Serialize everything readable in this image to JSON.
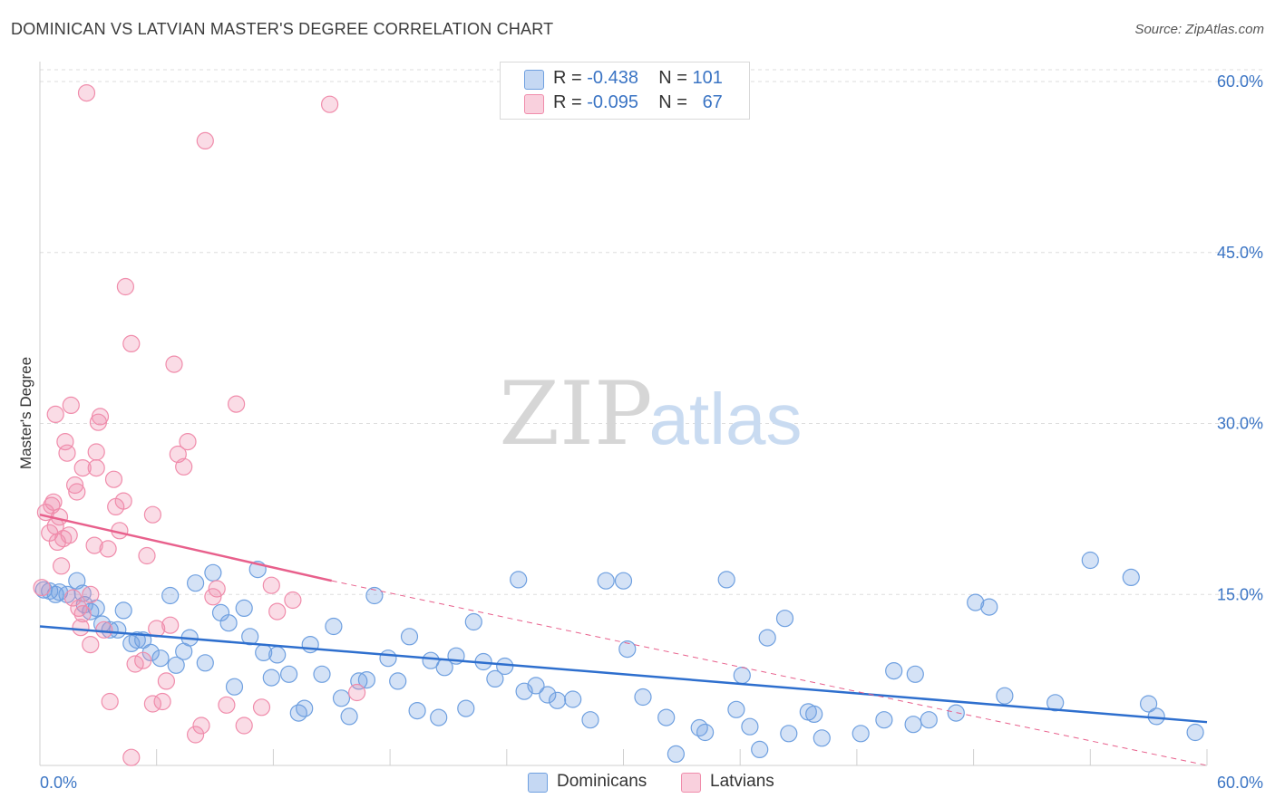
{
  "header": {
    "title": "DOMINICAN VS LATVIAN MASTER'S DEGREE CORRELATION CHART",
    "source": "Source: ZipAtlas.com"
  },
  "watermark": {
    "zip": "ZIP",
    "atlas": "atlas"
  },
  "legend": {
    "rows": [
      {
        "r_label": "R =",
        "r_value": "-0.438",
        "n_label": "N =",
        "n_value": "101",
        "color": "#6fa0e0"
      },
      {
        "r_label": "R =",
        "r_value": "-0.095",
        "n_label": "N =",
        "n_value": "67",
        "color": "#f08cab"
      }
    ]
  },
  "bottom_legend": [
    {
      "label": "Dominicans",
      "color": "#6fa0e0"
    },
    {
      "label": "Latvians",
      "color": "#f08cab"
    }
  ],
  "chart_data": {
    "type": "scatter",
    "title": "DOMINICAN VS LATVIAN MASTER'S DEGREE CORRELATION CHART",
    "xlabel": "",
    "ylabel": "Master's Degree",
    "xlim": [
      0,
      60
    ],
    "ylim": [
      0,
      60
    ],
    "x_tick_labels": [
      {
        "value": 0,
        "label": "0.0%"
      },
      {
        "value": 60,
        "label": "60.0%"
      }
    ],
    "y_tick_labels": [
      {
        "value": 15,
        "label": "15.0%"
      },
      {
        "value": 30,
        "label": "30.0%"
      },
      {
        "value": 45,
        "label": "45.0%"
      },
      {
        "value": 60,
        "label": "60.0%"
      }
    ],
    "colors": {
      "dominicans": "#6fa0e0",
      "latvians": "#f08cab",
      "dominicans_line": "#2e6fce",
      "latvians_line": "#e8608c"
    },
    "series": [
      {
        "name": "Dominicans",
        "trend": {
          "x0": 0,
          "y0": 12.2,
          "x1": 60,
          "y1": 3.8
        },
        "points": [
          [
            0.5,
            15.3
          ],
          [
            0.8,
            15.0
          ],
          [
            1.0,
            15.2
          ],
          [
            1.4,
            15.0
          ],
          [
            1.9,
            16.2
          ],
          [
            2.3,
            14.1
          ],
          [
            2.6,
            13.5
          ],
          [
            2.9,
            13.8
          ],
          [
            3.2,
            12.4
          ],
          [
            3.6,
            11.9
          ],
          [
            4.0,
            11.9
          ],
          [
            4.3,
            13.6
          ],
          [
            4.7,
            10.7
          ],
          [
            5.0,
            11.0
          ],
          [
            5.3,
            11.0
          ],
          [
            5.7,
            9.9
          ],
          [
            6.2,
            9.4
          ],
          [
            6.7,
            14.9
          ],
          [
            7.0,
            8.8
          ],
          [
            7.4,
            10.0
          ],
          [
            7.7,
            11.2
          ],
          [
            8.0,
            16.0
          ],
          [
            8.5,
            9.0
          ],
          [
            8.9,
            16.9
          ],
          [
            9.3,
            13.4
          ],
          [
            9.7,
            12.5
          ],
          [
            10.0,
            6.9
          ],
          [
            10.5,
            13.8
          ],
          [
            10.8,
            11.3
          ],
          [
            11.2,
            17.2
          ],
          [
            11.5,
            9.9
          ],
          [
            11.9,
            7.7
          ],
          [
            12.2,
            9.7
          ],
          [
            12.8,
            8.0
          ],
          [
            13.3,
            4.6
          ],
          [
            13.6,
            5.0
          ],
          [
            13.9,
            10.6
          ],
          [
            14.5,
            8.0
          ],
          [
            15.1,
            12.2
          ],
          [
            15.5,
            5.9
          ],
          [
            15.9,
            4.3
          ],
          [
            16.4,
            7.4
          ],
          [
            16.8,
            7.5
          ],
          [
            17.2,
            14.9
          ],
          [
            17.9,
            9.4
          ],
          [
            18.4,
            7.4
          ],
          [
            19.0,
            11.3
          ],
          [
            19.4,
            4.8
          ],
          [
            20.1,
            9.2
          ],
          [
            20.5,
            4.2
          ],
          [
            20.8,
            8.6
          ],
          [
            21.4,
            9.6
          ],
          [
            21.9,
            5.0
          ],
          [
            22.3,
            12.6
          ],
          [
            22.8,
            9.1
          ],
          [
            23.4,
            7.6
          ],
          [
            23.9,
            8.7
          ],
          [
            24.6,
            16.3
          ],
          [
            24.9,
            6.5
          ],
          [
            25.5,
            7.0
          ],
          [
            26.1,
            6.2
          ],
          [
            26.6,
            5.7
          ],
          [
            27.4,
            5.8
          ],
          [
            28.3,
            4.0
          ],
          [
            29.1,
            16.2
          ],
          [
            30.0,
            16.2
          ],
          [
            30.2,
            10.2
          ],
          [
            31.0,
            6.0
          ],
          [
            32.2,
            4.2
          ],
          [
            32.7,
            1.0
          ],
          [
            33.9,
            3.3
          ],
          [
            34.2,
            2.9
          ],
          [
            35.3,
            16.3
          ],
          [
            35.8,
            4.9
          ],
          [
            36.1,
            7.9
          ],
          [
            36.5,
            3.4
          ],
          [
            37.0,
            1.4
          ],
          [
            37.4,
            11.2
          ],
          [
            38.3,
            12.9
          ],
          [
            38.5,
            2.8
          ],
          [
            39.5,
            4.7
          ],
          [
            39.8,
            4.5
          ],
          [
            40.2,
            2.4
          ],
          [
            42.2,
            2.8
          ],
          [
            43.4,
            4.0
          ],
          [
            43.9,
            8.3
          ],
          [
            44.9,
            3.6
          ],
          [
            45.0,
            8.0
          ],
          [
            45.7,
            4.0
          ],
          [
            47.1,
            4.6
          ],
          [
            48.1,
            14.3
          ],
          [
            48.8,
            13.9
          ],
          [
            49.6,
            6.1
          ],
          [
            52.2,
            5.5
          ],
          [
            54.0,
            18.0
          ],
          [
            56.1,
            16.5
          ],
          [
            57.0,
            5.4
          ],
          [
            57.4,
            4.3
          ],
          [
            59.4,
            2.9
          ],
          [
            2.2,
            15.1
          ],
          [
            0.2,
            15.4
          ]
        ]
      },
      {
        "name": "Latvians",
        "trend": {
          "x0": 0,
          "y0": 22.0,
          "x1": 15.0,
          "y1": 16.2
        },
        "trend_extension": {
          "x0": 15.0,
          "y0": 16.2,
          "x1": 60,
          "y1": 0
        },
        "points": [
          [
            0.1,
            15.6
          ],
          [
            0.3,
            22.2
          ],
          [
            0.5,
            20.4
          ],
          [
            0.6,
            22.8
          ],
          [
            0.7,
            23.1
          ],
          [
            0.8,
            21.0
          ],
          [
            0.8,
            30.8
          ],
          [
            0.9,
            19.6
          ],
          [
            1.0,
            21.8
          ],
          [
            1.1,
            17.5
          ],
          [
            1.2,
            19.9
          ],
          [
            1.3,
            28.4
          ],
          [
            1.4,
            27.4
          ],
          [
            1.5,
            20.2
          ],
          [
            1.6,
            31.6
          ],
          [
            1.7,
            14.7
          ],
          [
            1.8,
            24.6
          ],
          [
            1.9,
            24.0
          ],
          [
            2.0,
            13.8
          ],
          [
            2.1,
            12.1
          ],
          [
            2.2,
            13.3
          ],
          [
            2.2,
            26.1
          ],
          [
            2.4,
            59.0
          ],
          [
            2.6,
            10.6
          ],
          [
            2.8,
            19.3
          ],
          [
            2.9,
            27.5
          ],
          [
            2.9,
            26.1
          ],
          [
            3.0,
            30.1
          ],
          [
            3.1,
            30.6
          ],
          [
            3.3,
            11.9
          ],
          [
            3.5,
            19.0
          ],
          [
            3.6,
            5.6
          ],
          [
            3.8,
            25.1
          ],
          [
            3.9,
            22.7
          ],
          [
            4.1,
            20.6
          ],
          [
            4.3,
            23.2
          ],
          [
            4.4,
            42.0
          ],
          [
            4.7,
            37.0
          ],
          [
            4.7,
            0.7
          ],
          [
            4.9,
            8.9
          ],
          [
            5.3,
            9.2
          ],
          [
            5.5,
            18.4
          ],
          [
            5.8,
            22.0
          ],
          [
            6.0,
            12.0
          ],
          [
            6.3,
            5.6
          ],
          [
            6.5,
            7.4
          ],
          [
            6.9,
            35.2
          ],
          [
            7.1,
            27.3
          ],
          [
            7.4,
            26.2
          ],
          [
            7.6,
            28.4
          ],
          [
            8.0,
            2.7
          ],
          [
            8.3,
            3.5
          ],
          [
            8.5,
            54.8
          ],
          [
            8.9,
            14.8
          ],
          [
            9.1,
            15.5
          ],
          [
            9.6,
            5.3
          ],
          [
            10.1,
            31.7
          ],
          [
            10.5,
            3.5
          ],
          [
            11.4,
            5.1
          ],
          [
            11.9,
            15.8
          ],
          [
            12.2,
            13.5
          ],
          [
            13.0,
            14.5
          ],
          [
            14.9,
            58.0
          ],
          [
            16.3,
            6.4
          ],
          [
            6.7,
            12.3
          ],
          [
            5.8,
            5.4
          ],
          [
            2.6,
            15.0
          ]
        ]
      }
    ]
  }
}
